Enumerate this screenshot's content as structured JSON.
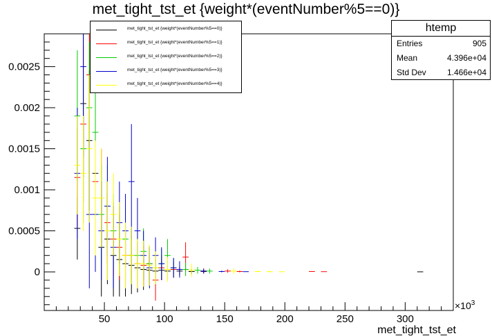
{
  "chart_data": {
    "type": "scatter",
    "title": "met_tight_tst_et {weight*(eventNumber%5==0)}",
    "xlabel": "met_tight_tst_et",
    "x_exponent_label": "×10^3",
    "xlim": [
      0,
      340
    ],
    "ylim": [
      -0.00047,
      0.0029
    ],
    "x_ticks": [
      "50",
      "100",
      "150",
      "200",
      "250",
      "300"
    ],
    "y_ticks": [
      "0",
      "0.0005",
      "0.001",
      "0.0015",
      "0.002",
      "0.0025"
    ],
    "legend_position": "top-left",
    "series": [
      {
        "name": "met_tight_tst_et {weight*(eventNumber%5==0)}",
        "color": "#000000",
        "points": [
          [
            27.5,
            0.00053,
            0.00038
          ],
          [
            32.5,
            0.00205,
            0.0009
          ],
          [
            37.5,
            0.0016,
            0.00085
          ],
          [
            42.5,
            0.0012,
            0.0007
          ],
          [
            47.5,
            0.0003,
            0.0006
          ],
          [
            52.5,
            0.0004,
            0.00055
          ],
          [
            57.5,
            0.0002,
            0.0005
          ],
          [
            62.5,
            0.00015,
            0.00045
          ],
          [
            67.5,
            0.0001,
            0.0004
          ],
          [
            72.5,
            8e-05,
            0.00035
          ],
          [
            77.5,
            5e-05,
            0.0003
          ],
          [
            82.5,
            3e-05,
            0.00025
          ],
          [
            87.5,
            2e-05,
            0.0002
          ],
          [
            92.5,
            1e-05,
            0.00015
          ],
          [
            97.5,
            2e-05,
            0.00012
          ],
          [
            102.5,
            1e-05,
            0.0001
          ],
          [
            112.5,
            1e-05,
            5e-05
          ],
          [
            122.5,
            5e-06,
            3e-05
          ],
          [
            132.5,
            5e-06,
            2e-05
          ],
          [
            312.5,
            1e-06,
            0
          ]
        ]
      },
      {
        "name": "met_tight_tst_et {weight*(eventNumber%5==1)}",
        "color": "#ff0000",
        "points": [
          [
            27.5,
            0.00115,
            0.0006
          ],
          [
            32.5,
            0.0018,
            0.00095
          ],
          [
            37.5,
            0.0024,
            0.0009
          ],
          [
            42.5,
            0.0011,
            0.0007
          ],
          [
            47.5,
            0.0009,
            0.0006
          ],
          [
            52.5,
            0.0006,
            0.0005
          ],
          [
            57.5,
            0.0004,
            0.00045
          ],
          [
            62.5,
            0.0003,
            0.0004
          ],
          [
            67.5,
            0.0002,
            0.00035
          ],
          [
            72.5,
            0.0002,
            0.0003
          ],
          [
            77.5,
            0.0001,
            0.00028
          ],
          [
            82.5,
            8e-05,
            0.00025
          ],
          [
            87.5,
            0.0001,
            0.0002
          ],
          [
            92.5,
            -0.0001,
            0.00025
          ],
          [
            97.5,
            5e-05,
            0.00015
          ],
          [
            107.5,
            3e-05,
            0.0001
          ],
          [
            117.5,
            0.00018,
            0.00018
          ],
          [
            132.5,
            1e-05,
            3e-05
          ],
          [
            152.5,
            1e-05,
            2e-05
          ],
          [
            162.5,
            5e-06,
            1e-05
          ],
          [
            222.5,
            5e-06,
            0
          ],
          [
            232.5,
            3e-06,
            0
          ]
        ]
      },
      {
        "name": "met_tight_tst_et {weight*(eventNumber%5==2)}",
        "color": "#00cc00",
        "points": [
          [
            27.5,
            0.0019,
            0.0008
          ],
          [
            32.5,
            0.0015,
            0.0009
          ],
          [
            37.5,
            0.002,
            0.0008
          ],
          [
            42.5,
            0.0017,
            0.0007
          ],
          [
            47.5,
            0.0007,
            0.0006
          ],
          [
            52.5,
            0.0008,
            0.0005
          ],
          [
            57.5,
            0.0005,
            0.00045
          ],
          [
            62.5,
            0.0004,
            0.0004
          ],
          [
            67.5,
            0.0004,
            0.00038
          ],
          [
            72.5,
            0.0002,
            0.00033
          ],
          [
            77.5,
            0.0002,
            0.0003
          ],
          [
            82.5,
            0.00025,
            0.00028
          ],
          [
            87.5,
            0.0001,
            0.00022
          ],
          [
            92.5,
            5e-05,
            0.0002
          ],
          [
            97.5,
            0.0001,
            0.00018
          ],
          [
            102.5,
            0.0002,
            0.0002
          ],
          [
            107.5,
            5e-05,
            0.00012
          ],
          [
            117.5,
            3e-05,
            8e-05
          ],
          [
            127.5,
            2e-05,
            4e-05
          ],
          [
            137.5,
            1e-05,
            3e-05
          ]
        ]
      },
      {
        "name": "met_tight_tst_et {weight*(eventNumber%5==3)}",
        "color": "#0000cc",
        "points": [
          [
            27.5,
            0.0012,
            0.0008
          ],
          [
            32.5,
            0.0025,
            0.0011
          ],
          [
            37.5,
            0.0007,
            0.0009
          ],
          [
            42.5,
            0.0007,
            0.0007
          ],
          [
            47.5,
            0.0005,
            0.0006
          ],
          [
            52.5,
            0.0008,
            0.0006
          ],
          [
            57.5,
            0.0003,
            0.0005
          ],
          [
            62.5,
            0.0006,
            0.0005
          ],
          [
            67.5,
            0.0005,
            0.00045
          ],
          [
            72.5,
            0.0011,
            0.0007
          ],
          [
            77.5,
            0.0005,
            0.0004
          ],
          [
            82.5,
            0.0002,
            0.0003
          ],
          [
            87.5,
            5e-05,
            0.00025
          ],
          [
            92.5,
            0.0002,
            0.00022
          ],
          [
            97.5,
            0.0001,
            0.0002
          ],
          [
            107.5,
            5e-05,
            0.00012
          ],
          [
            112.5,
            3e-05,
            0.0001
          ],
          [
            132.5,
            1e-05,
            3e-05
          ],
          [
            147.5,
            5e-06,
            1e-05
          ],
          [
            167.5,
            3e-06,
            0
          ]
        ]
      },
      {
        "name": "met_tight_tst_et {weight*(eventNumber%5==4)}",
        "color": "#ffff00",
        "points": [
          [
            27.5,
            0.0013,
            0.0006
          ],
          [
            32.5,
            0.0012,
            0.0007
          ],
          [
            37.5,
            0.0015,
            0.0009
          ],
          [
            42.5,
            0.0009,
            0.0007
          ],
          [
            47.5,
            0.0009,
            0.0006
          ],
          [
            52.5,
            0.0005,
            0.0006
          ],
          [
            57.5,
            0.0007,
            0.0005
          ],
          [
            62.5,
            0.0004,
            0.00045
          ],
          [
            67.5,
            0.0002,
            0.0004
          ],
          [
            72.5,
            0.0002,
            0.00035
          ],
          [
            77.5,
            0.0001,
            0.0003
          ],
          [
            82.5,
            0.0001,
            0.00028
          ],
          [
            87.5,
            8e-05,
            0.00025
          ],
          [
            92.5,
            5e-05,
            0.0002
          ],
          [
            102.5,
            3e-05,
            0.00015
          ],
          [
            122.5,
            2e-05,
            8e-05
          ],
          [
            157.5,
            1e-05,
            3e-05
          ],
          [
            177.5,
            5e-06,
            1e-05
          ],
          [
            187.5,
            3e-06,
            1e-05
          ],
          [
            197.5,
            2e-06,
            0
          ]
        ]
      }
    ]
  },
  "stats": {
    "name": "htemp",
    "rows": [
      {
        "label": "Entries",
        "value": "905"
      },
      {
        "label": "Mean",
        "value": "4.396e+04"
      },
      {
        "label": "Std Dev",
        "value": "1.466e+04"
      }
    ]
  }
}
